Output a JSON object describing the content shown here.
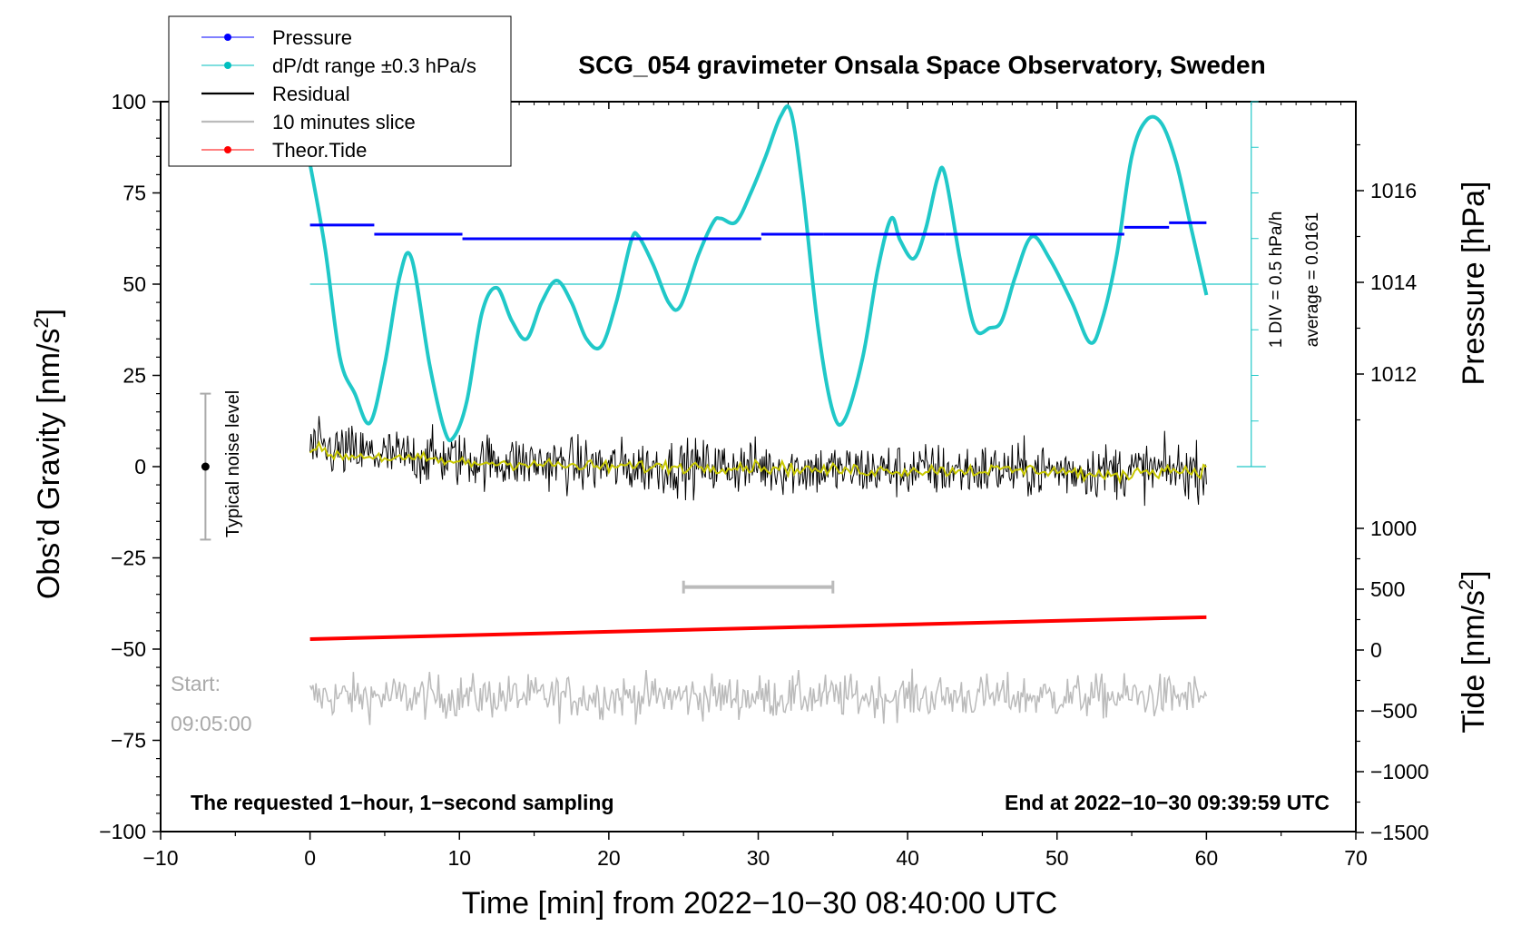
{
  "chart_data": {
    "type": "line",
    "title": "SCG_054 gravimeter Onsala Space Observatory, Sweden",
    "xlabel": "Time [min] from 2022−10−30 08:40:00 UTC",
    "ylabel_left_prefix": "Obs’d Gravity [nm/s",
    "ylabel_left_sup": "2",
    "ylabel_left_suffix": "]",
    "ylabel_right_pressure": "Pressure [hPa]",
    "ylabel_right_tide_prefix": "Tide [nm/s",
    "ylabel_right_tide_sup": "2",
    "ylabel_right_tide_suffix": "]",
    "xlim": [
      -10,
      70
    ],
    "ylim": [
      -100,
      100
    ],
    "pressure_lim": [
      1010,
      1018
    ],
    "tide_lim": [
      -1500,
      1000
    ],
    "x_ticks": [
      -10,
      0,
      10,
      20,
      30,
      40,
      50,
      60,
      70
    ],
    "x_tick_labels": [
      "−10",
      "0",
      "10",
      "20",
      "30",
      "40",
      "50",
      "60",
      "70"
    ],
    "y_ticks": [
      100,
      75,
      50,
      25,
      0,
      -25,
      -50,
      -75,
      -100
    ],
    "y_tick_labels": [
      "100",
      "75",
      "50",
      "25",
      "0",
      "−25",
      "−50",
      "−75",
      "−100"
    ],
    "pressure_ticks": [
      1016,
      1014,
      1012
    ],
    "pressure_tick_labels": [
      "1016",
      "1014",
      "1012"
    ],
    "tide_ticks": [
      1000,
      500,
      0,
      -500,
      -1000,
      -1500
    ],
    "tide_tick_labels": [
      "1000",
      "500",
      "0",
      "−500",
      "−1000",
      "−1500"
    ],
    "legend_position": "top-left",
    "legend": [
      {
        "label": "Pressure",
        "color": "#0000ff",
        "marker": "dot"
      },
      {
        "label": "dP/dt range ±0.3 hPa/s",
        "color": "#00bfbf",
        "marker": "dot"
      },
      {
        "label": "Residual",
        "color": "#000000",
        "marker": "line"
      },
      {
        "label": "10 minutes slice",
        "color": "#bbbbbb",
        "marker": "line"
      },
      {
        "label": "Theor.Tide",
        "color": "#ff0000",
        "marker": "dot"
      }
    ],
    "annotations": {
      "noise_label": "Typical noise level",
      "noise_center": 0,
      "noise_range": [
        -20,
        20
      ],
      "noise_x": -7,
      "slice_bracket_x": [
        25,
        35
      ],
      "slice_bracket_y": -33,
      "start_label": "Start:",
      "start_time": "09:05:00",
      "pressure_scale_text": "1 DIV = 0.5 hPa/h",
      "pressure_average_text": "average = 0.0161",
      "pressure_scale_x": 63,
      "pressure_scale_range": [
        0,
        100
      ],
      "pressure_scale_reference": 50,
      "bottom_left": "The requested 1−hour, 1−second sampling",
      "bottom_right": "End at 2022−10−30 09:39:59 UTC"
    },
    "series": [
      {
        "name": "dP/dt range ±0.3 hPa/s",
        "axis": "left",
        "color": "#20c8c8",
        "x": [
          0,
          1,
          2,
          3,
          4,
          5,
          6,
          6.8,
          8,
          9,
          9.6,
          10.5,
          11.5,
          12.5,
          13.5,
          14.5,
          15.5,
          16.5,
          17.5,
          18.5,
          19.5,
          20.5,
          21.5,
          22,
          23,
          24,
          24.8,
          26,
          27,
          27.5,
          28.5,
          29.5,
          30.5,
          31.5,
          32.2,
          33,
          34,
          35,
          35.8,
          37,
          38,
          38.9,
          39.5,
          40.4,
          41.2,
          42,
          42.5,
          43.5,
          44.5,
          45.5,
          46.3,
          47.2,
          48.3,
          49.5,
          51,
          52.2,
          53,
          54,
          55,
          56,
          57,
          58,
          59,
          60
        ],
        "y": [
          83,
          60,
          30,
          20,
          12,
          28,
          52,
          57,
          28,
          10,
          8,
          18,
          42,
          49,
          40,
          35,
          45,
          51,
          45,
          35,
          33,
          45,
          62,
          63,
          55,
          45,
          44,
          58,
          67,
          68,
          67,
          75,
          85,
          96,
          97,
          75,
          38,
          15,
          13,
          30,
          54,
          68,
          62,
          57,
          65,
          79,
          80,
          57,
          38,
          38,
          40,
          52,
          63,
          57,
          45,
          34,
          40,
          58,
          85,
          95,
          94,
          83,
          65,
          47
        ]
      },
      {
        "name": "Pressure",
        "axis": "pressure",
        "color": "#0000ff",
        "segments": [
          {
            "x0": 0,
            "x1": 4.3,
            "hpa": 1015.25
          },
          {
            "x0": 4.3,
            "x1": 10.2,
            "hpa": 1015.05
          },
          {
            "x0": 10.2,
            "x1": 30.2,
            "hpa": 1014.95
          },
          {
            "x0": 30.2,
            "x1": 34.4,
            "hpa": 1015.05
          },
          {
            "x0": 34.4,
            "x1": 42.5,
            "hpa": 1015.05
          },
          {
            "x0": 42.5,
            "x1": 49.5,
            "hpa": 1015.05
          },
          {
            "x0": 49.5,
            "x1": 54.5,
            "hpa": 1015.05
          },
          {
            "x0": 54.5,
            "x1": 57.5,
            "hpa": 1015.2
          },
          {
            "x0": 57.5,
            "x1": 60,
            "hpa": 1015.3
          }
        ]
      },
      {
        "name": "Residual",
        "axis": "left",
        "color": "#000000",
        "x": [
          0,
          5,
          10,
          15,
          20,
          25,
          30,
          35,
          40,
          45,
          50,
          55,
          60
        ],
        "y": [
          5,
          3,
          2,
          1,
          0,
          0,
          0,
          -1,
          -1,
          -1,
          -1,
          -1,
          -1
        ],
        "noise_amplitude": 5
      },
      {
        "name": "Residual smoothed",
        "axis": "left",
        "color": "#c8c800",
        "x": [
          0,
          2,
          4,
          6,
          8,
          10,
          14,
          18,
          22,
          26,
          30,
          34,
          38,
          42,
          46,
          50,
          53.5,
          56,
          60
        ],
        "y": [
          5,
          3,
          3,
          2,
          2,
          1,
          1,
          0,
          0,
          0,
          0,
          -1,
          -1,
          -1,
          -1,
          -1,
          -3,
          -1,
          -1
        ]
      },
      {
        "name": "Theor.Tide",
        "axis": "tide",
        "color": "#ff0000",
        "x": [
          0,
          60
        ],
        "y": [
          90,
          270
        ]
      },
      {
        "name": "10 minutes slice",
        "axis": "left",
        "color": "#bbbbbb",
        "x": [
          0,
          60
        ],
        "y": [
          -63,
          -63
        ],
        "noise_amplitude": 5
      }
    ]
  }
}
